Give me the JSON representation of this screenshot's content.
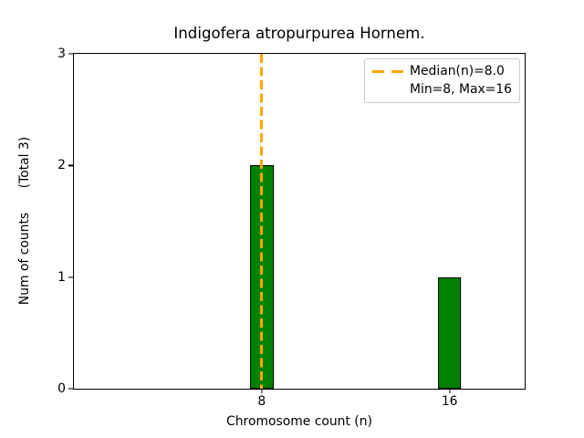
{
  "figure": {
    "background": "#ffffff",
    "spine_color": "#000000",
    "text_color": "#000000"
  },
  "chart_data": {
    "type": "bar",
    "title": "Indigofera atropurpurea Hornem.",
    "xlabel": "Chromosome count (n)",
    "ylabel": "Num of counts      (Total 3)",
    "x": [
      8,
      16
    ],
    "values": [
      2,
      1
    ],
    "bar_width_units": 1.0,
    "bar_color": "#008000",
    "bar_edge_color": "#000000",
    "xlim": [
      0,
      19.2
    ],
    "ylim": [
      0,
      3
    ],
    "xticks": [
      8,
      16
    ],
    "yticks": [
      0,
      1,
      2,
      3
    ],
    "grid": false,
    "median_line": {
      "x": 8,
      "color": "#FFA500",
      "style": "dashed",
      "label": "Median(n)=8.0"
    },
    "legend": {
      "position": "upper right",
      "border_color": "#cccccc",
      "entries": [
        {
          "handle": "orange-dashed-line",
          "handle_color": "#FFA500",
          "label": "Median(n)=8.0"
        },
        {
          "handle": "none",
          "handle_color": "",
          "label": "Min=8, Max=16"
        }
      ]
    }
  }
}
